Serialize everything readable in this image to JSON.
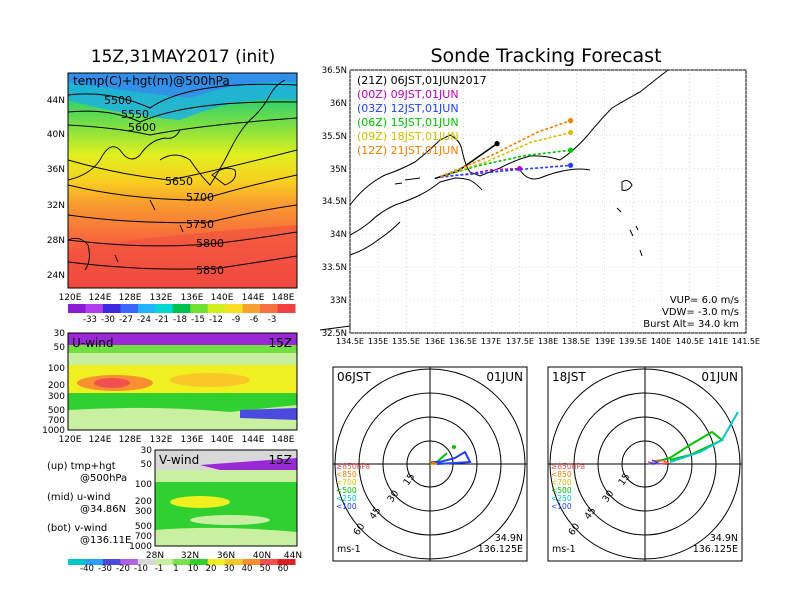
{
  "colors": {
    "temp_scale": [
      "#8a1ad6",
      "#b03cf0",
      "#3c28e0",
      "#3c64ff",
      "#20b4ff",
      "#00d8d0",
      "#00c050",
      "#70e030",
      "#d0f020",
      "#f8e020",
      "#f8a030",
      "#f87040",
      "#f04040"
    ],
    "wind_scale": [
      "#00c8c8",
      "#28a0ff",
      "#4a4ae0",
      "#b060e0",
      "#d8d8d8",
      "#c8f0a0",
      "#78e050",
      "#30d030",
      "#f0f020",
      "#f8c828",
      "#f89030",
      "#f05050",
      "#e02020"
    ],
    "series": [
      "#000000",
      "#c000c0",
      "#2040ff",
      "#00c000",
      "#d0c000",
      "#f08000"
    ]
  },
  "left": {
    "title": "15Z,31MAY2017 (init)",
    "map": {
      "label": "temp(C)+hgt(m)@500hPa",
      "lat_ticks": [
        "44N",
        "40N",
        "36N",
        "32N",
        "28N",
        "24N"
      ],
      "lon_ticks": [
        "120E",
        "124E",
        "128E",
        "132E",
        "136E",
        "140E",
        "144E",
        "148E"
      ],
      "contours": [
        "5500",
        "5550",
        "5600",
        "5650",
        "5700",
        "5750",
        "5800",
        "5850"
      ],
      "colorbar_labels": [
        "-33",
        "-30",
        "-27",
        "-24",
        "-21",
        "-18",
        "-15",
        "-12",
        "-9",
        "-6",
        "-3"
      ]
    },
    "uwind": {
      "label": "U-wind",
      "time": "15Z",
      "p_ticks": [
        "30",
        "50",
        "100",
        "200",
        "300",
        "500",
        "700",
        "1000"
      ],
      "lon_ticks": [
        "120E",
        "124E",
        "128E",
        "132E",
        "136E",
        "140E",
        "144E",
        "148E"
      ]
    },
    "vwind": {
      "label": "V-wind",
      "time": "15Z",
      "p_ticks": [
        "30",
        "50",
        "100",
        "200",
        "300",
        "500",
        "700",
        "1000"
      ],
      "lat_ticks": [
        "28N",
        "32N",
        "36N",
        "40N",
        "44N"
      ]
    },
    "legend": {
      "up1": "(up)  tmp+hgt",
      "up2": "@500hPa",
      "mid1": "(mid)  u-wind",
      "mid2": "@34.86N",
      "bot1": "(bot)  v-wind",
      "bot2": "@136.11E"
    },
    "wind_colorbar_labels": [
      "-40",
      "-30",
      "-20",
      "-10",
      "-1",
      "1",
      "10",
      "20",
      "30",
      "40",
      "50",
      "60"
    ]
  },
  "right": {
    "title": "Sonde Tracking Forecast",
    "launches": [
      {
        "label": "(21Z)  06JST,01JUN2017",
        "color": "#000000"
      },
      {
        "label": "(00Z)  09JST,01JUN",
        "color": "#c000c0"
      },
      {
        "label": "(03Z)  12JST,01JUN",
        "color": "#2040ff"
      },
      {
        "label": "(06Z)  15JST,01JUN",
        "color": "#00c000"
      },
      {
        "label": "(09Z)  18JST,01JUN",
        "color": "#d0c000"
      },
      {
        "label": "(12Z)  21JST,01JUN",
        "color": "#f08000"
      }
    ],
    "lat_ticks": [
      "36.5N",
      "36N",
      "35.5N",
      "35N",
      "34.5N",
      "34N",
      "33.5N",
      "33N",
      "32.5N"
    ],
    "lon_ticks": [
      "134.5E",
      "135E",
      "135.5E",
      "136E",
      "136.5E",
      "137E",
      "137.5E",
      "138E",
      "138.5E",
      "139E",
      "139.5E",
      "140E",
      "140.5E",
      "141E",
      "141.5E"
    ],
    "params": {
      "vup": "VUP=  6.0  m/s",
      "vdw": "VDW=  -3.0  m/s",
      "burst": "Burst  Alt=  34.0  km"
    }
  },
  "hodographs": [
    {
      "time": "06JST",
      "date": "01JUN",
      "lat": "34.9N",
      "lon": "136.125E",
      "unit": "ms-1",
      "ring_labels": [
        "15",
        "30",
        "45",
        "60"
      ],
      "levels": [
        "≥850hPa",
        "<850",
        "<700",
        "<500",
        "<250",
        "<100"
      ]
    },
    {
      "time": "18JST",
      "date": "01JUN",
      "lat": "34.9N",
      "lon": "136.125E",
      "unit": "ms-1",
      "ring_labels": [
        "15",
        "30",
        "45",
        "60"
      ],
      "levels": [
        "≥850hPa",
        "<850",
        "<700",
        "<500",
        "<250",
        "<100"
      ]
    }
  ],
  "chart_data": [
    {
      "type": "heatmap",
      "title": "15Z,31MAY2017 (init)",
      "field": "temp(C)+hgt(m)@500hPa",
      "xlim": [
        "120E",
        "148E"
      ],
      "ylim": [
        "24N",
        "44N"
      ],
      "contour_levels": [
        5500,
        5550,
        5600,
        5650,
        5700,
        5750,
        5800,
        5850
      ],
      "colorbar": [
        -33,
        -30,
        -27,
        -24,
        -21,
        -18,
        -15,
        -12,
        -9,
        -6,
        -3
      ]
    },
    {
      "type": "heatmap",
      "field": "U-wind @34.86N",
      "xlim": [
        "120E",
        "148E"
      ],
      "ylim": [
        1000,
        30
      ]
    },
    {
      "type": "heatmap",
      "field": "V-wind @136.11E",
      "xlim": [
        "28N",
        "44N"
      ],
      "ylim": [
        1000,
        30
      ],
      "colorbar": [
        -40,
        -30,
        -20,
        -10,
        -1,
        1,
        10,
        20,
        30,
        40,
        50,
        60
      ]
    },
    {
      "type": "line",
      "title": "Sonde Tracking Forecast",
      "xlim": [
        134.5,
        141.5
      ],
      "ylim": [
        32.5,
        36.5
      ],
      "series": [
        {
          "name": "(21Z)  06JST,01JUN2017",
          "x": [
            136.0,
            136.4,
            136.8,
            137.1
          ],
          "y": [
            34.85,
            34.96,
            35.2,
            35.38
          ]
        },
        {
          "name": "(00Z)  09JST,01JUN",
          "x": [
            136.1,
            136.6,
            137.0,
            137.5
          ],
          "y": [
            34.87,
            34.92,
            34.98,
            35.0
          ]
        },
        {
          "name": "(03Z)  12JST,01JUN",
          "x": [
            136.1,
            136.7,
            137.4,
            138.4
          ],
          "y": [
            34.88,
            34.92,
            34.98,
            35.05
          ]
        },
        {
          "name": "(06Z)  15JST,01JUN",
          "x": [
            136.1,
            136.8,
            137.6,
            138.4
          ],
          "y": [
            34.88,
            35.05,
            35.2,
            35.28
          ]
        },
        {
          "name": "(09Z)  18JST,01JUN",
          "x": [
            136.1,
            136.9,
            137.7,
            138.4
          ],
          "y": [
            34.88,
            35.1,
            35.4,
            35.55
          ]
        },
        {
          "name": "(12Z)  21JST,01JUN",
          "x": [
            136.1,
            137.0,
            137.8,
            138.4
          ],
          "y": [
            34.88,
            35.2,
            35.55,
            35.73
          ]
        }
      ]
    }
  ]
}
